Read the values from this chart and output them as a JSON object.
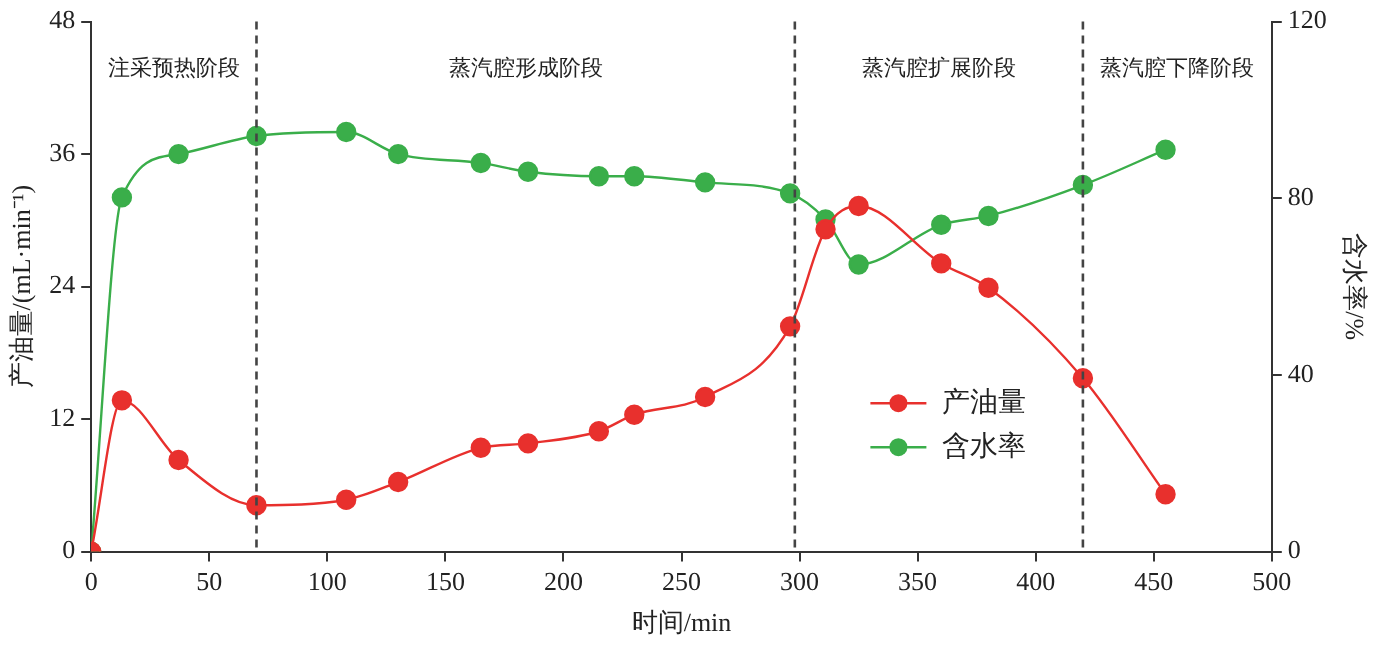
{
  "chart_data": {
    "type": "line",
    "xlabel": "时间/min",
    "ylabel": "产油量/(mL·min⁻¹)",
    "y2label": "含水率/%",
    "series": [
      {
        "name": "产油量",
        "color": "#e8302d",
        "x": [
          0,
          13,
          37,
          70,
          108,
          130,
          165,
          185,
          215,
          230,
          260,
          296,
          311,
          325,
          360,
          380,
          420,
          455
        ],
        "values": [
          0,
          13.7,
          8.3,
          4.2,
          4.7,
          6.3,
          9.4,
          9.8,
          10.9,
          12.4,
          14.0,
          20.4,
          29.2,
          31.3,
          26.1,
          23.9,
          15.7,
          5.2
        ]
      },
      {
        "name": "含水率",
        "color": "#3aae4a",
        "axis": "y2",
        "x": [
          0,
          13,
          37,
          70,
          108,
          130,
          165,
          185,
          215,
          230,
          260,
          296,
          311,
          325,
          360,
          380,
          420,
          455
        ],
        "values": [
          0,
          80.2,
          90,
          94.1,
          95,
          90,
          88,
          86,
          85,
          85,
          83.6,
          81.1,
          75.2,
          65,
          74,
          76,
          83,
          91
        ]
      }
    ],
    "xlim": [
      0,
      500
    ],
    "xticks": [
      0,
      50,
      100,
      150,
      200,
      250,
      300,
      350,
      400,
      450,
      500
    ],
    "ylim": [
      0,
      48
    ],
    "yticks": [
      0,
      12,
      24,
      36,
      48
    ],
    "y2lim": [
      0,
      120
    ],
    "y2ticks": [
      0,
      40,
      80,
      120
    ],
    "ref_lines": [
      {
        "axis": "x",
        "value": 70,
        "line_style": "dashed"
      },
      {
        "axis": "x",
        "value": 298,
        "line_style": "dashed"
      },
      {
        "axis": "x",
        "value": 420,
        "line_style": "dashed"
      }
    ],
    "annotations": [
      "注采预热阶段",
      "蒸汽腔形成阶段",
      "蒸汽腔扩展阶段",
      "蒸汽腔下降阶段"
    ],
    "legend": "bottom right",
    "marker": "circle",
    "line_style": "solid",
    "grid": false
  }
}
